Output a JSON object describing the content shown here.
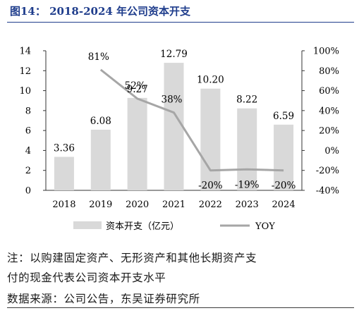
{
  "figure": {
    "title": "图14： 2018-2024 年公司资本开支"
  },
  "notes": {
    "line1": "注：以购建固定资产、无形资产和其他长期资产支",
    "line2": "付的现金代表公司资本开支水平",
    "source": "数据来源：公司公告，东吴证券研究所"
  },
  "chart_data": {
    "type": "bar",
    "categories": [
      "2018",
      "2019",
      "2020",
      "2021",
      "2022",
      "2023",
      "2024"
    ],
    "series": [
      {
        "name": "资本开支（亿元）",
        "type": "bar",
        "axis": "left",
        "values": [
          3.36,
          6.08,
          9.27,
          12.79,
          10.2,
          8.22,
          6.59
        ],
        "labels": [
          "3.36",
          "6.08",
          "9.27",
          "12.79",
          "10.20",
          "8.22",
          "6.59"
        ],
        "color": "#d9d9d9"
      },
      {
        "name": "YOY",
        "type": "line",
        "axis": "right",
        "values": [
          null,
          81,
          52,
          38,
          -20,
          -19,
          -20
        ],
        "labels": [
          "",
          "81%",
          "52%",
          "38%",
          "-20%",
          "-19%",
          "-20%"
        ],
        "color": "#a6a6a6"
      }
    ],
    "y_left": {
      "min": 0,
      "max": 14,
      "step": 2,
      "ticks": [
        "0",
        "2",
        "4",
        "6",
        "8",
        "10",
        "12",
        "14"
      ]
    },
    "y_right": {
      "min": -40,
      "max": 100,
      "step": 20,
      "ticks": [
        "-40%",
        "-20%",
        "0%",
        "20%",
        "40%",
        "60%",
        "80%",
        "100%"
      ]
    },
    "grid": false,
    "legend_position": "bottom",
    "legend": [
      "资本开支（亿元）",
      "YOY"
    ]
  }
}
